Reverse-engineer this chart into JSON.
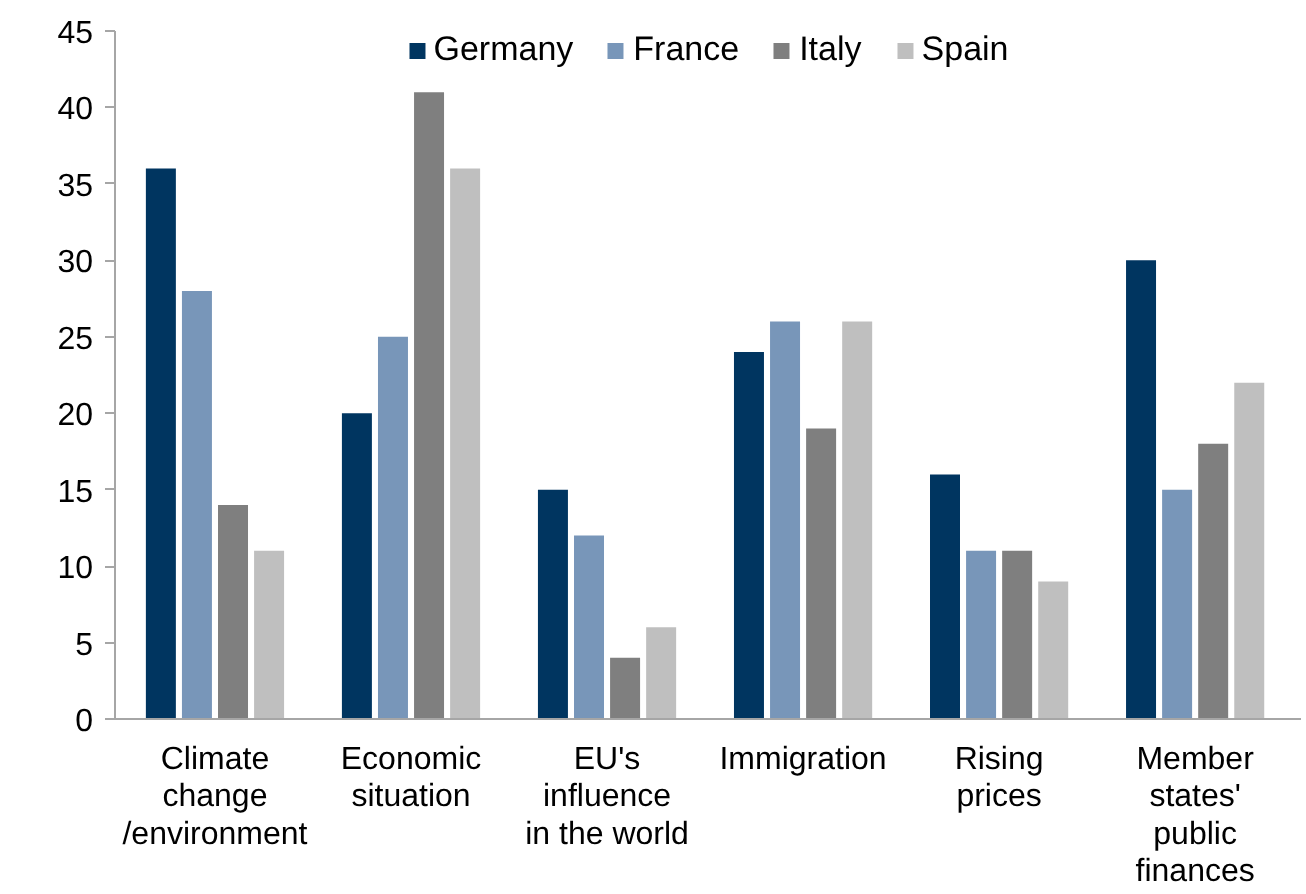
{
  "chart_data": {
    "type": "bar",
    "categories": [
      "Climate\nchange\n/environment",
      "Economic\nsituation",
      "EU's\ninfluence\nin the world",
      "Immigration",
      "Rising\nprices",
      "Member\nstates'\npublic\nfinances"
    ],
    "series": [
      {
        "name": "Germany",
        "color": "#003560",
        "values": [
          36,
          20,
          15,
          24,
          16,
          30
        ]
      },
      {
        "name": "France",
        "color": "#7896b9",
        "values": [
          28,
          25,
          12,
          26,
          11,
          15
        ]
      },
      {
        "name": "Italy",
        "color": "#7f7f7f",
        "values": [
          14,
          41,
          4,
          19,
          11,
          18
        ]
      },
      {
        "name": "Spain",
        "color": "#bfbfbf",
        "values": [
          11,
          36,
          6,
          26,
          9,
          22
        ]
      }
    ],
    "ylim": [
      0,
      45
    ],
    "yticks": [
      0,
      5,
      10,
      15,
      20,
      25,
      30,
      35,
      40,
      45
    ],
    "grid": false,
    "legend": "top"
  }
}
